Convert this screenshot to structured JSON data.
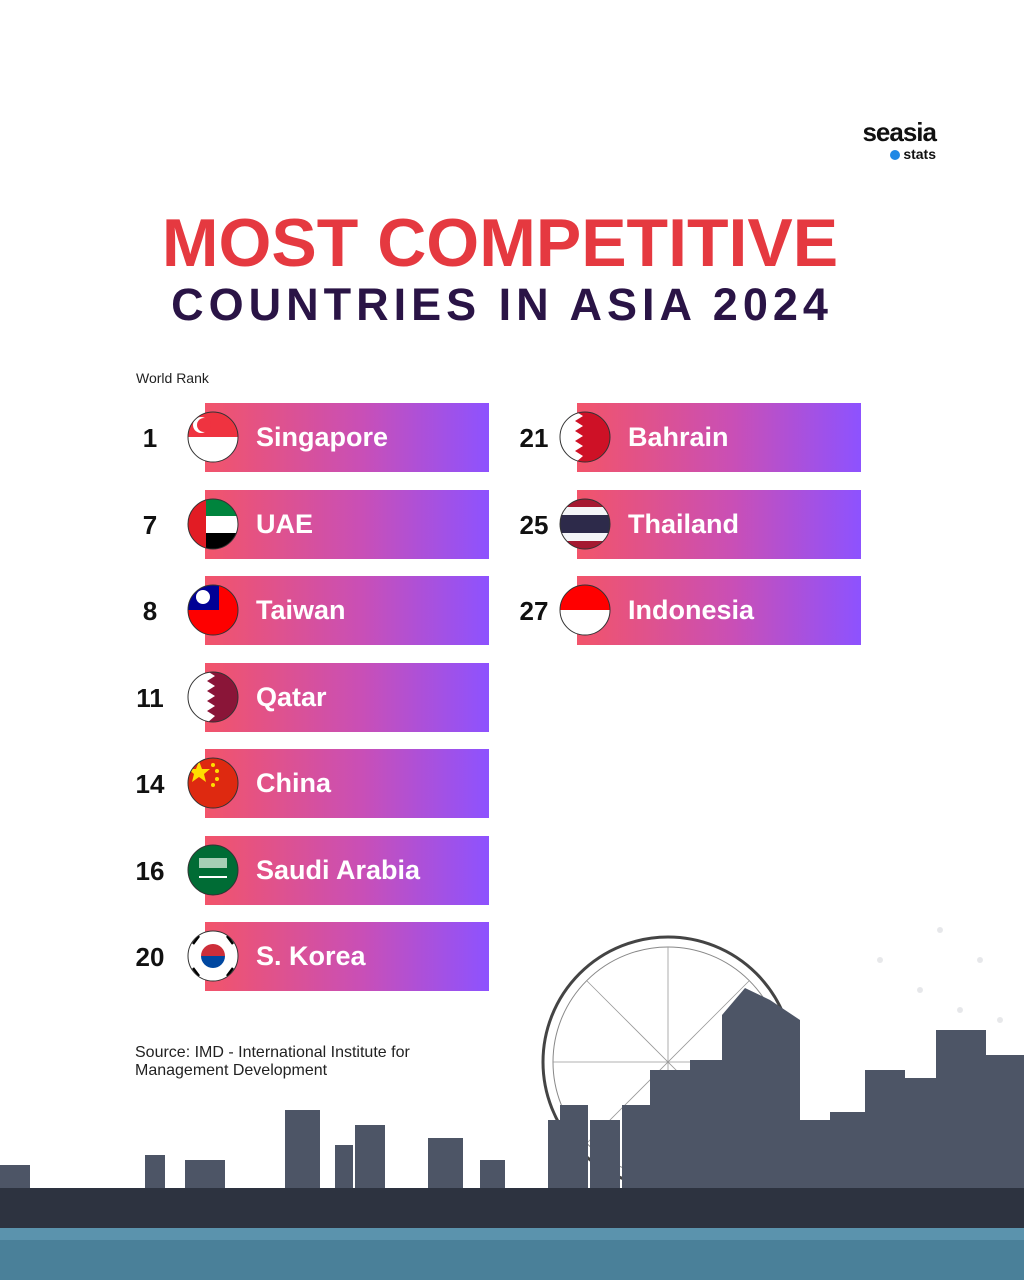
{
  "brand": {
    "name": "seasia",
    "sub": "stats"
  },
  "title": {
    "line1": "MOST COMPETITIVE",
    "line2": "COUNTRIES IN ASIA 2024"
  },
  "column_label": "World Rank",
  "rankings": [
    {
      "rank": 1,
      "country": "Singapore"
    },
    {
      "rank": 7,
      "country": "UAE"
    },
    {
      "rank": 8,
      "country": "Taiwan"
    },
    {
      "rank": 11,
      "country": "Qatar"
    },
    {
      "rank": 14,
      "country": "China"
    },
    {
      "rank": 16,
      "country": "Saudi Arabia"
    },
    {
      "rank": 20,
      "country": "S. Korea"
    },
    {
      "rank": 21,
      "country": "Bahrain"
    },
    {
      "rank": 25,
      "country": "Thailand"
    },
    {
      "rank": 27,
      "country": "Indonesia"
    }
  ],
  "source": "Source: IMD - International Institute for Management Development"
}
